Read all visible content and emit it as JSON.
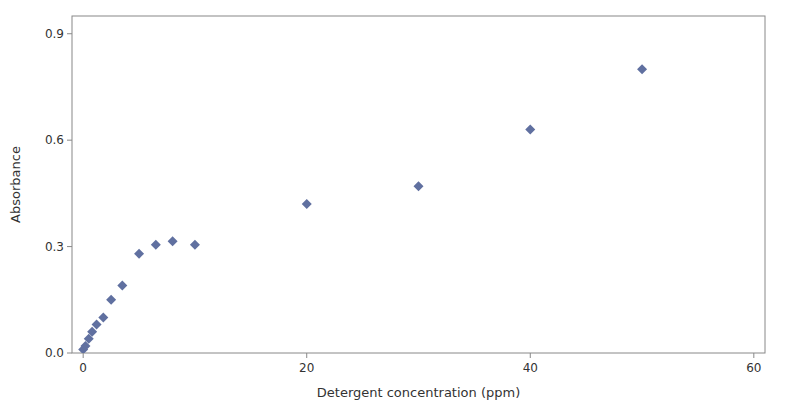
{
  "chart_data": {
    "type": "scatter",
    "x": [
      0.0,
      0.2,
      0.5,
      0.8,
      1.2,
      1.8,
      2.5,
      3.5,
      5.0,
      6.5,
      8.0,
      10.0,
      20.0,
      30.0,
      40.0,
      50.0
    ],
    "y": [
      0.01,
      0.02,
      0.04,
      0.06,
      0.08,
      0.1,
      0.15,
      0.19,
      0.28,
      0.305,
      0.315,
      0.305,
      0.42,
      0.47,
      0.63,
      0.8
    ],
    "color": "#6070a0",
    "marker": "diamond",
    "xlabel": "Detergent concentration (ppm)",
    "ylabel": "Absorbance",
    "xlim": [
      -1,
      61
    ],
    "ylim": [
      0,
      0.95
    ],
    "xticks": [
      0,
      20,
      40,
      60
    ],
    "yticks": [
      {
        "value": 0.0,
        "label": "0.0"
      },
      0.3,
      0.6,
      0.9
    ],
    "grid": false
  }
}
